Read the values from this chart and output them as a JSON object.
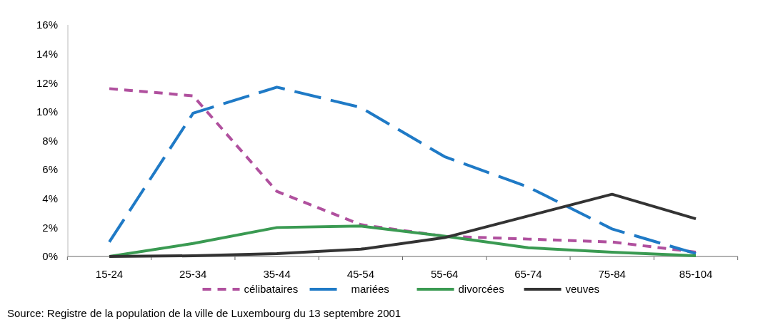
{
  "chart_data": {
    "type": "line",
    "categories": [
      "15-24",
      "25-34",
      "35-44",
      "45-54",
      "55-64",
      "65-74",
      "75-84",
      "85-104"
    ],
    "series": [
      {
        "name": "célibataires",
        "color": "#b0509e",
        "line_style": "dotted",
        "values": [
          11.6,
          11.1,
          4.5,
          2.2,
          1.4,
          1.2,
          1.0,
          0.3
        ]
      },
      {
        "name": "mariées",
        "color": "#1f7ac6",
        "line_style": "dashed",
        "values": [
          1.0,
          9.9,
          11.7,
          10.3,
          6.9,
          4.8,
          1.9,
          0.2
        ]
      },
      {
        "name": "divorcées",
        "color": "#3a9a52",
        "line_style": "solid",
        "values": [
          0,
          0.9,
          2.0,
          2.1,
          1.4,
          0.6,
          0.3,
          0.05
        ]
      },
      {
        "name": "veuves",
        "color": "#333333",
        "line_style": "solid",
        "values": [
          0,
          0.05,
          0.2,
          0.5,
          1.3,
          2.8,
          4.3,
          2.6
        ]
      }
    ],
    "ylim": [
      0,
      16
    ],
    "yticks": [
      {
        "value": 0,
        "label": "0%"
      },
      {
        "value": 2,
        "label": "2%"
      },
      {
        "value": 4,
        "label": "4%"
      },
      {
        "value": 6,
        "label": "6%"
      },
      {
        "value": 8,
        "label": "8%"
      },
      {
        "value": 10,
        "label": "10%"
      },
      {
        "value": 12,
        "label": "12%"
      },
      {
        "value": 14,
        "label": "14%"
      },
      {
        "value": 16,
        "label": "16%"
      }
    ],
    "legend": "bottom",
    "marker": "none",
    "annotations": [
      "Source: Registre de la population de la ville de Luxembourg du 13 septembre 2001"
    ]
  }
}
